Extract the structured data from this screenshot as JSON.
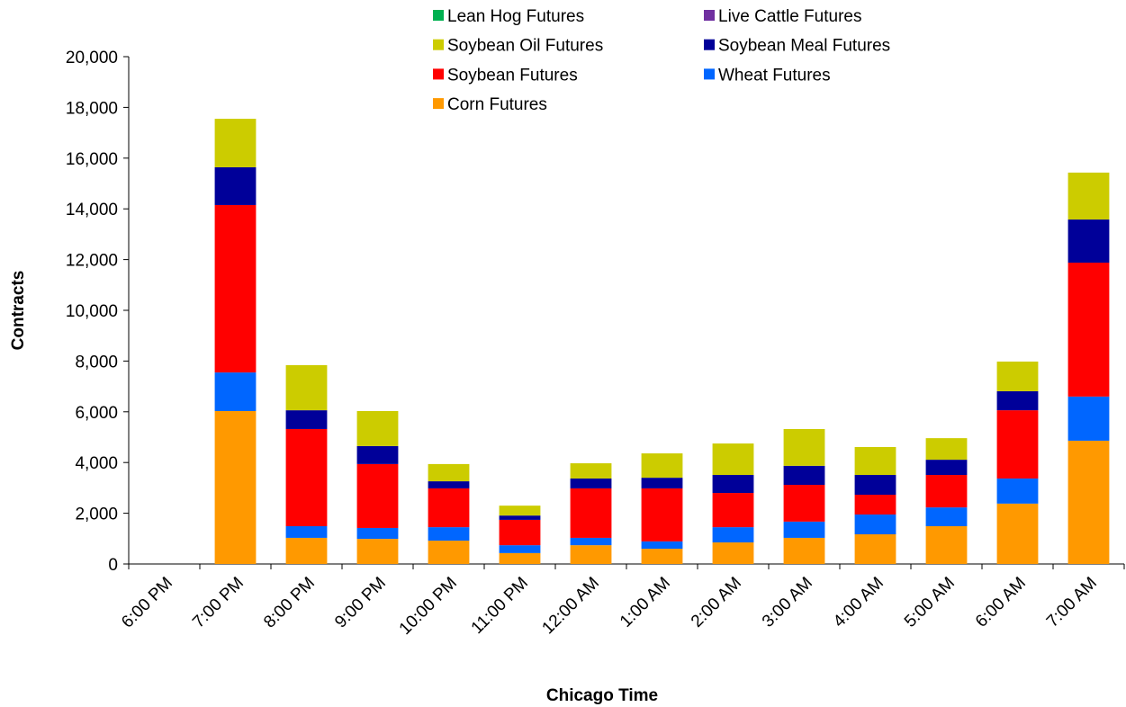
{
  "chart_data": {
    "type": "stacked_bar",
    "xlabel": "Chicago Time",
    "ylabel": "Contracts",
    "categories": [
      "6:00 PM",
      "7:00 PM",
      "8:00 PM",
      "9:00 PM",
      "10:00 PM",
      "11:00 PM",
      "12:00 AM",
      "1:00 AM",
      "2:00 AM",
      "3:00 AM",
      "4:00 AM",
      "5:00 AM",
      "6:00 AM",
      "7:00 AM"
    ],
    "series": [
      {
        "name": "Corn Futures",
        "color": "#ff9900",
        "values": [
          0,
          6030,
          1030,
          990,
          920,
          430,
          740,
          600,
          850,
          1030,
          1170,
          1490,
          2380,
          4860
        ]
      },
      {
        "name": "Wheat Futures",
        "color": "#0066ff",
        "values": [
          0,
          1520,
          460,
          430,
          530,
          310,
          290,
          290,
          600,
          640,
          780,
          740,
          990,
          1740
        ]
      },
      {
        "name": "Soybean Futures",
        "color": "#ff0000",
        "values": [
          0,
          6600,
          3830,
          2520,
          1530,
          1000,
          1950,
          2090,
          1350,
          1450,
          780,
          1280,
          2690,
          5280
        ]
      },
      {
        "name": "Soybean Meal Futures",
        "color": "#000099",
        "values": [
          0,
          1490,
          740,
          710,
          280,
          170,
          390,
          420,
          710,
          750,
          780,
          600,
          750,
          1700
        ]
      },
      {
        "name": "Soybean Oil Futures",
        "color": "#cccc00",
        "values": [
          0,
          1910,
          1780,
          1380,
          680,
          390,
          600,
          960,
          1240,
          1450,
          1100,
          850,
          1170,
          1850
        ]
      },
      {
        "name": "Live Cattle Futures",
        "color": "#7030a0",
        "values": [
          0,
          0,
          0,
          0,
          0,
          0,
          0,
          0,
          0,
          0,
          0,
          0,
          0,
          0
        ]
      },
      {
        "name": "Lean Hog Futures",
        "color": "#00b050",
        "values": [
          0,
          0,
          0,
          0,
          0,
          0,
          0,
          0,
          0,
          0,
          0,
          0,
          0,
          0
        ]
      }
    ],
    "ylim": [
      0,
      20000
    ],
    "yticks": [
      0,
      {
        "value": 2000,
        "label": "2,000"
      },
      {
        "value": 4000,
        "label": "4,000"
      },
      {
        "value": 6000,
        "label": "6,000"
      },
      {
        "value": 8000,
        "label": "8,000"
      },
      {
        "value": 10000,
        "label": "10,000"
      },
      {
        "value": 12000,
        "label": "12,000"
      },
      {
        "value": 14000,
        "label": "14,000"
      },
      {
        "value": 16000,
        "label": "16,000"
      },
      {
        "value": 18000,
        "label": "18,000"
      },
      {
        "value": 20000,
        "label": "20,000"
      }
    ],
    "grid": false,
    "legend": "top"
  }
}
